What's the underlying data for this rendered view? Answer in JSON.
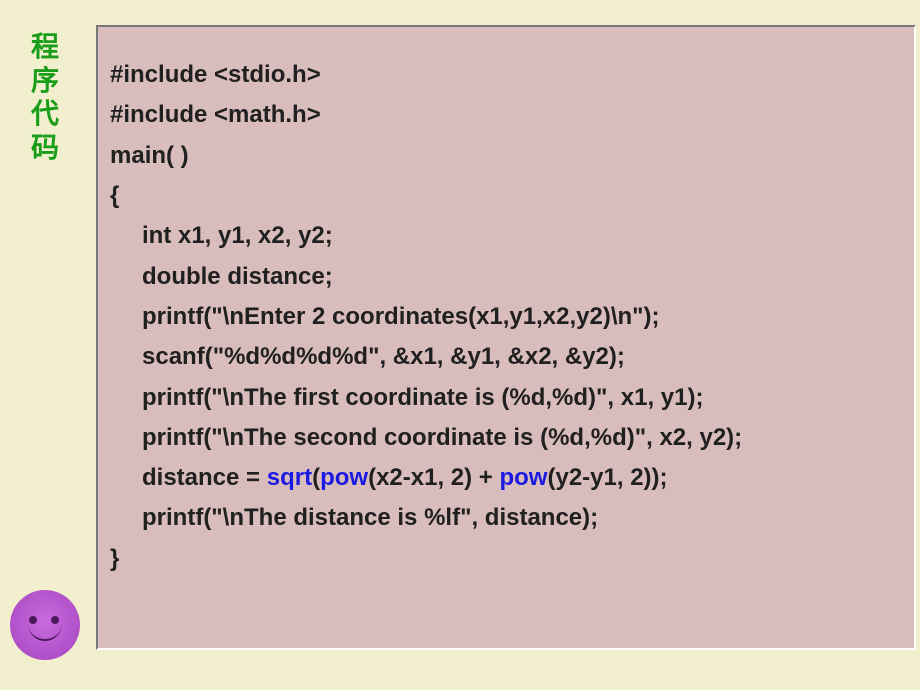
{
  "label": {
    "c1": "程",
    "c2": "序",
    "c3": "代",
    "c4": "码"
  },
  "code": {
    "l1": "#include <stdio.h>",
    "l2": "#include <math.h>",
    "l3": "main( )",
    "l4": "{",
    "l5": "int x1, y1, x2, y2;",
    "l6": "double distance;",
    "l7": "",
    "l8": "printf(\"\\nEnter 2 coordinates(x1,y1,x2,y2)\\n\");",
    "l9": "scanf(\"%d%d%d%d\", &x1, &y1, &x2, &y2);",
    "l10": "printf(\"\\nThe first coordinate is (%d,%d)\", x1, y1);",
    "l11": "printf(\"\\nThe second coordinate is (%d,%d)\", x2, y2);",
    "l12": "",
    "l13a": "distance = ",
    "l13b": "sqrt",
    "l13c": "(",
    "l13d": "pow",
    "l13e": "(x2-x1, 2) + ",
    "l13f": "pow",
    "l13g": "(y2-y1, 2));",
    "l14": "printf(\"\\nThe distance is %lf\", distance);",
    "l15": "}"
  },
  "colors": {
    "background": "#f2efce",
    "codebox": "#d9bdbc",
    "label": "#1a9e1a",
    "text": "#202020",
    "keyword": "#1a1ae0",
    "smiley": "#b050c8"
  }
}
